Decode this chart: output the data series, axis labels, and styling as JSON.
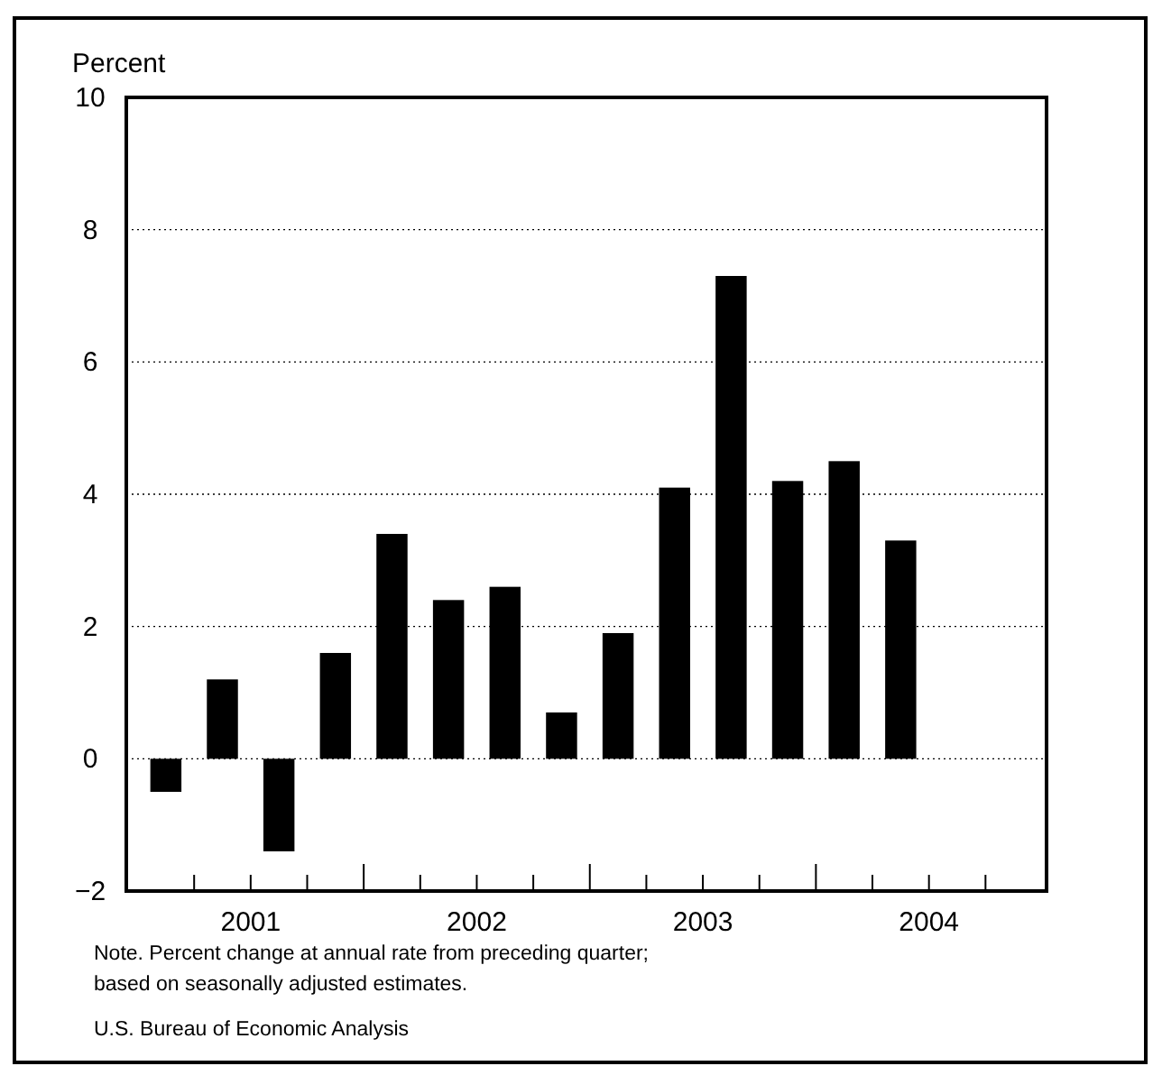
{
  "chart_data": {
    "type": "bar",
    "ylabel": "Percent",
    "x": [
      2001.125,
      2001.375,
      2001.625,
      2001.875,
      2002.125,
      2002.375,
      2002.625,
      2002.875,
      2003.125,
      2003.375,
      2003.625,
      2003.875,
      2004.125,
      2004.375
    ],
    "values": [
      -0.5,
      1.2,
      -1.4,
      1.6,
      3.4,
      2.4,
      2.6,
      0.7,
      1.9,
      4.1,
      7.3,
      4.2,
      4.5,
      3.3
    ],
    "color": "#000000",
    "xlim": [
      2000.95,
      2005.02
    ],
    "xticks": [
      {
        "value": 2001.25,
        "label": null
      },
      {
        "value": 2001.5,
        "label": "2001"
      },
      {
        "value": 2001.75,
        "label": null
      },
      {
        "value": 2002,
        "label": null
      },
      {
        "value": 2002.25,
        "label": null
      },
      {
        "value": 2002.5,
        "label": "2002"
      },
      {
        "value": 2002.75,
        "label": null
      },
      {
        "value": 2003,
        "label": null
      },
      {
        "value": 2003.25,
        "label": null
      },
      {
        "value": 2003.5,
        "label": "2003"
      },
      {
        "value": 2003.75,
        "label": null
      },
      {
        "value": 2004,
        "label": null
      },
      {
        "value": 2004.25,
        "label": null
      },
      {
        "value": 2004.5,
        "label": "2004"
      },
      {
        "value": 2004.75,
        "label": null
      }
    ],
    "ylim": [
      -2,
      10
    ],
    "yticks": [
      {
        "value": -2,
        "label": "−2"
      },
      0,
      2,
      4,
      6,
      8,
      10
    ],
    "grid": "y",
    "annotations": [
      "Note. Percent change at annual rate from preceding quarter; based on seasonally adjusted estimates.",
      "U.S. Bureau of Economic Analysis"
    ]
  }
}
